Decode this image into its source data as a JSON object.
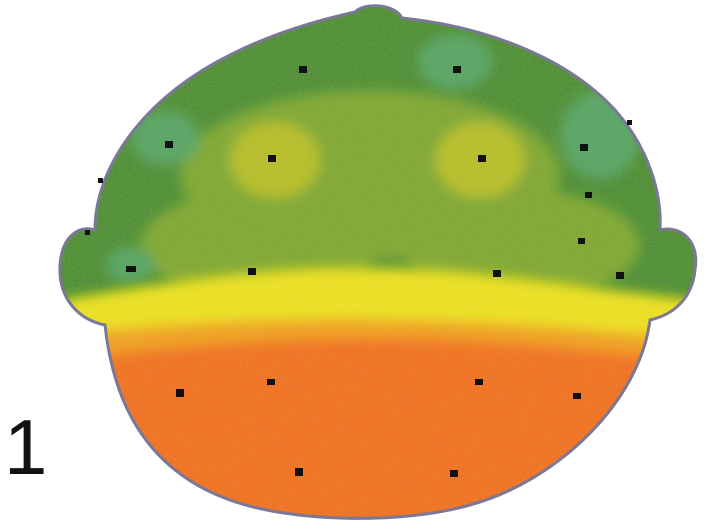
{
  "panel_label": "1",
  "colors": {
    "outline": "#7a7896",
    "green_dark": "#3c8c2e",
    "green_teal": "#4aa466",
    "green_olive": "#7ca82a",
    "yellow_green": "#b8c01a",
    "yellow": "#f0e400",
    "orange": "#f5a000",
    "orange_red": "#f56a00",
    "red_orange": "#f05a00",
    "electrode": "#111111"
  },
  "electrode_count": 21
}
